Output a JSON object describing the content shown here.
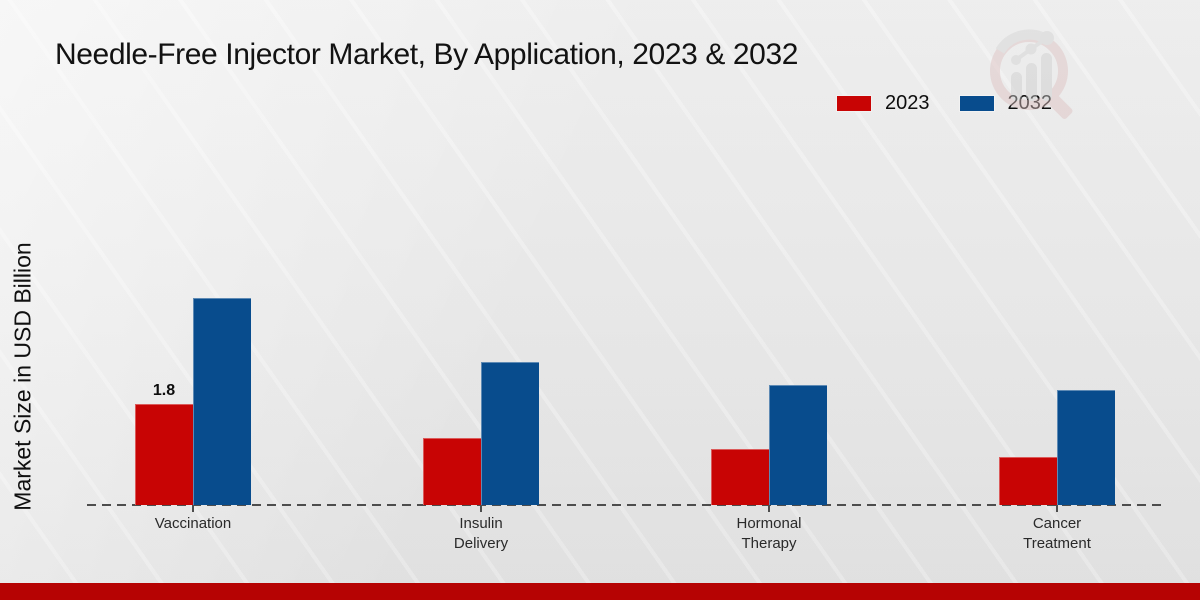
{
  "page": {
    "title": "Needle-Free Injector Market, By Application, 2023 & 2032",
    "y_axis_label": "Market Size in USD Billion"
  },
  "legend": {
    "items": [
      {
        "label": "2023",
        "color": "#c80404"
      },
      {
        "label": "2032",
        "color": "#084c8d"
      }
    ]
  },
  "chart_data": {
    "type": "bar",
    "title": "Needle-Free Injector Market, By Application, 2023 & 2032",
    "xlabel": "",
    "ylabel": "Market Size in USD Billion",
    "categories": [
      "Vaccination",
      "Insulin Delivery",
      "Hormonal Therapy",
      "Cancer Treatment"
    ],
    "series": [
      {
        "name": "2023",
        "color": "#c80404",
        "values": [
          1.8,
          1.2,
          1.0,
          0.85
        ]
      },
      {
        "name": "2032",
        "color": "#084c8d",
        "values": [
          3.7,
          2.55,
          2.15,
          2.05
        ]
      }
    ],
    "value_labels": [
      {
        "series_index": 0,
        "category_index": 0,
        "text": "1.8"
      }
    ],
    "ylim": [
      0,
      4
    ],
    "y_axis_ticks_visible": false,
    "grid": false,
    "legend_position": "top-right",
    "baseline_style": "dashed"
  },
  "watermark": {
    "icon": "magnifier-bar-chart-logo"
  },
  "footer": {
    "accent_color": "#b60303"
  }
}
